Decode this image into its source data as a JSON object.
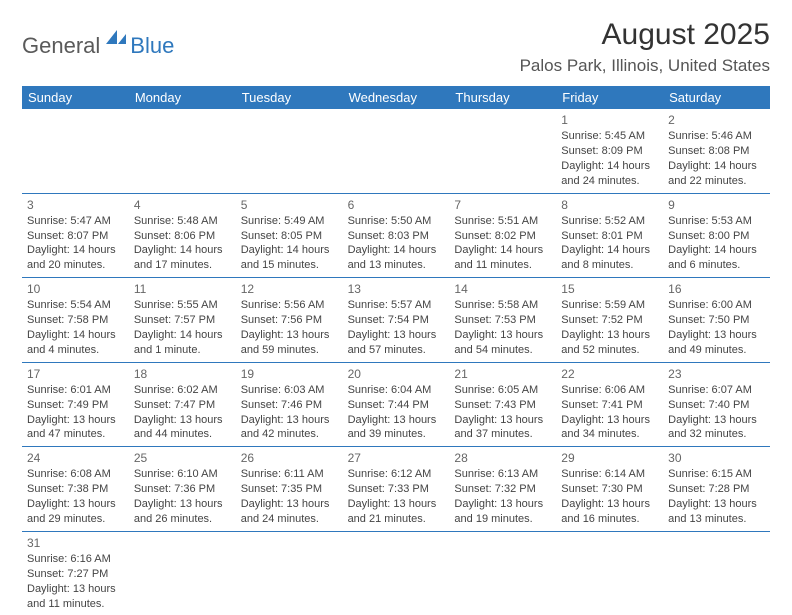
{
  "logo": {
    "text1": "General",
    "text2": "Blue"
  },
  "title": "August 2025",
  "location": "Palos Park, Illinois, United States",
  "header_bg": "#2f78bd",
  "header_text_color": "#ffffff",
  "border_color": "#2f78bd",
  "cell_text_color": "#444444",
  "font_size_title": 30,
  "font_size_location": 17,
  "font_size_cell": 11,
  "weekdays": [
    "Sunday",
    "Monday",
    "Tuesday",
    "Wednesday",
    "Thursday",
    "Friday",
    "Saturday"
  ],
  "weeks": [
    [
      null,
      null,
      null,
      null,
      null,
      {
        "n": "1",
        "sr": "5:45 AM",
        "ss": "8:09 PM",
        "dl": "14 hours and 24 minutes."
      },
      {
        "n": "2",
        "sr": "5:46 AM",
        "ss": "8:08 PM",
        "dl": "14 hours and 22 minutes."
      }
    ],
    [
      {
        "n": "3",
        "sr": "5:47 AM",
        "ss": "8:07 PM",
        "dl": "14 hours and 20 minutes."
      },
      {
        "n": "4",
        "sr": "5:48 AM",
        "ss": "8:06 PM",
        "dl": "14 hours and 17 minutes."
      },
      {
        "n": "5",
        "sr": "5:49 AM",
        "ss": "8:05 PM",
        "dl": "14 hours and 15 minutes."
      },
      {
        "n": "6",
        "sr": "5:50 AM",
        "ss": "8:03 PM",
        "dl": "14 hours and 13 minutes."
      },
      {
        "n": "7",
        "sr": "5:51 AM",
        "ss": "8:02 PM",
        "dl": "14 hours and 11 minutes."
      },
      {
        "n": "8",
        "sr": "5:52 AM",
        "ss": "8:01 PM",
        "dl": "14 hours and 8 minutes."
      },
      {
        "n": "9",
        "sr": "5:53 AM",
        "ss": "8:00 PM",
        "dl": "14 hours and 6 minutes."
      }
    ],
    [
      {
        "n": "10",
        "sr": "5:54 AM",
        "ss": "7:58 PM",
        "dl": "14 hours and 4 minutes."
      },
      {
        "n": "11",
        "sr": "5:55 AM",
        "ss": "7:57 PM",
        "dl": "14 hours and 1 minute."
      },
      {
        "n": "12",
        "sr": "5:56 AM",
        "ss": "7:56 PM",
        "dl": "13 hours and 59 minutes."
      },
      {
        "n": "13",
        "sr": "5:57 AM",
        "ss": "7:54 PM",
        "dl": "13 hours and 57 minutes."
      },
      {
        "n": "14",
        "sr": "5:58 AM",
        "ss": "7:53 PM",
        "dl": "13 hours and 54 minutes."
      },
      {
        "n": "15",
        "sr": "5:59 AM",
        "ss": "7:52 PM",
        "dl": "13 hours and 52 minutes."
      },
      {
        "n": "16",
        "sr": "6:00 AM",
        "ss": "7:50 PM",
        "dl": "13 hours and 49 minutes."
      }
    ],
    [
      {
        "n": "17",
        "sr": "6:01 AM",
        "ss": "7:49 PM",
        "dl": "13 hours and 47 minutes."
      },
      {
        "n": "18",
        "sr": "6:02 AM",
        "ss": "7:47 PM",
        "dl": "13 hours and 44 minutes."
      },
      {
        "n": "19",
        "sr": "6:03 AM",
        "ss": "7:46 PM",
        "dl": "13 hours and 42 minutes."
      },
      {
        "n": "20",
        "sr": "6:04 AM",
        "ss": "7:44 PM",
        "dl": "13 hours and 39 minutes."
      },
      {
        "n": "21",
        "sr": "6:05 AM",
        "ss": "7:43 PM",
        "dl": "13 hours and 37 minutes."
      },
      {
        "n": "22",
        "sr": "6:06 AM",
        "ss": "7:41 PM",
        "dl": "13 hours and 34 minutes."
      },
      {
        "n": "23",
        "sr": "6:07 AM",
        "ss": "7:40 PM",
        "dl": "13 hours and 32 minutes."
      }
    ],
    [
      {
        "n": "24",
        "sr": "6:08 AM",
        "ss": "7:38 PM",
        "dl": "13 hours and 29 minutes."
      },
      {
        "n": "25",
        "sr": "6:10 AM",
        "ss": "7:36 PM",
        "dl": "13 hours and 26 minutes."
      },
      {
        "n": "26",
        "sr": "6:11 AM",
        "ss": "7:35 PM",
        "dl": "13 hours and 24 minutes."
      },
      {
        "n": "27",
        "sr": "6:12 AM",
        "ss": "7:33 PM",
        "dl": "13 hours and 21 minutes."
      },
      {
        "n": "28",
        "sr": "6:13 AM",
        "ss": "7:32 PM",
        "dl": "13 hours and 19 minutes."
      },
      {
        "n": "29",
        "sr": "6:14 AM",
        "ss": "7:30 PM",
        "dl": "13 hours and 16 minutes."
      },
      {
        "n": "30",
        "sr": "6:15 AM",
        "ss": "7:28 PM",
        "dl": "13 hours and 13 minutes."
      }
    ],
    [
      {
        "n": "31",
        "sr": "6:16 AM",
        "ss": "7:27 PM",
        "dl": "13 hours and 11 minutes."
      },
      null,
      null,
      null,
      null,
      null,
      null
    ]
  ],
  "labels": {
    "sunrise": "Sunrise:",
    "sunset": "Sunset:",
    "daylight": "Daylight:"
  }
}
